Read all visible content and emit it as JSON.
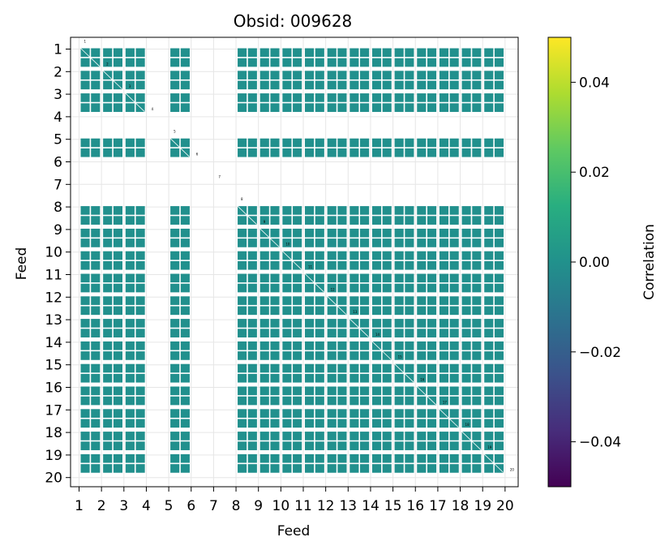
{
  "chart_data": {
    "type": "heatmap",
    "title": "Obsid: 009628",
    "xlabel": "Feed",
    "ylabel": "Feed",
    "x_ticks": [
      "1",
      "2",
      "3",
      "4",
      "5",
      "6",
      "7",
      "8",
      "9",
      "10",
      "11",
      "12",
      "13",
      "14",
      "15",
      "16",
      "17",
      "18",
      "19",
      "20"
    ],
    "y_ticks": [
      "1",
      "2",
      "3",
      "4",
      "5",
      "6",
      "7",
      "8",
      "9",
      "10",
      "11",
      "12",
      "13",
      "14",
      "15",
      "16",
      "17",
      "18",
      "19",
      "20"
    ],
    "xlim": [
      0.6,
      20.5
    ],
    "ylim": [
      20.5,
      0.6
    ],
    "active_feeds": [
      1,
      2,
      3,
      5,
      8,
      9,
      10,
      11,
      12,
      13,
      14,
      15,
      16,
      17,
      18,
      19
    ],
    "inactive_feeds": [
      4,
      6,
      7,
      20
    ],
    "cell_value": 0.0,
    "colorbar": {
      "label": "Correlation",
      "colormap": "viridis",
      "vmin": -0.05,
      "vmax": 0.05,
      "ticks": [
        0.04,
        0.02,
        0.0,
        -0.02,
        -0.04
      ],
      "tick_labels": [
        "0.04",
        "0.02",
        "0.00",
        "−0.02",
        "−0.04"
      ]
    },
    "colors": {
      "cell": "#21908d",
      "grid": "#e6e6e6",
      "viridis_top": "#fde725",
      "viridis_bottom": "#440154"
    }
  }
}
